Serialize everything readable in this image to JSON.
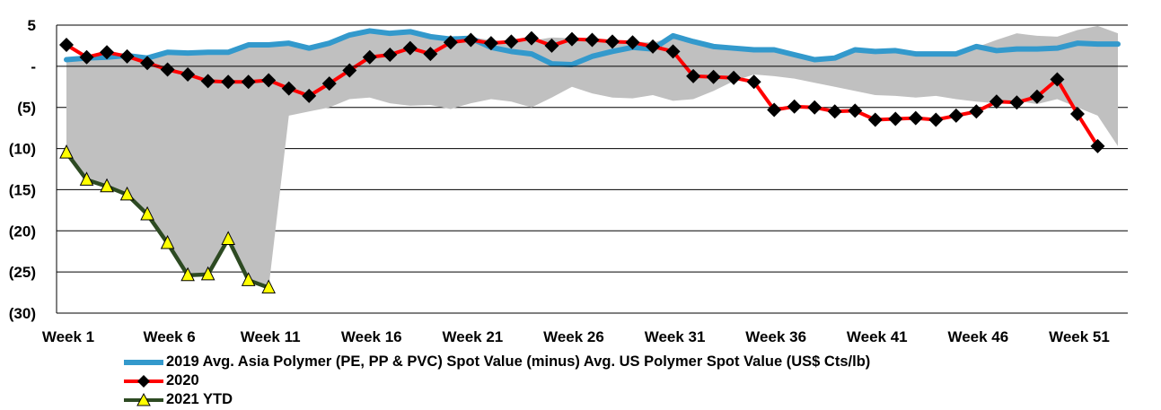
{
  "chart_data": {
    "type": "line",
    "title": "",
    "xlabel": "",
    "ylabel": "",
    "ylim": [
      -30,
      5
    ],
    "y_ticks": [
      5,
      0,
      -5,
      -10,
      -15,
      -20,
      -25,
      -30
    ],
    "y_tick_labels": [
      "5",
      "-",
      "(5)",
      "(10)",
      "(15)",
      "(20)",
      "(25)",
      "(30)"
    ],
    "x_tick_labels": [
      "Week 1",
      "Week 6",
      "Week 11",
      "Week 16",
      "Week 21",
      "Week 26",
      "Week 31",
      "Week 36",
      "Week 41",
      "Week 46",
      "Week 51"
    ],
    "x_tick_weeks": [
      1,
      6,
      11,
      16,
      21,
      26,
      31,
      36,
      41,
      46,
      51
    ],
    "grid": true,
    "legend_position": "bottom",
    "band": {
      "name": "range",
      "color": "#c0c0c0",
      "upper": [
        1.1,
        1.2,
        1.0,
        1.3,
        1.3,
        1.6,
        1.5,
        1.6,
        1.6,
        2.3,
        2.3,
        2.6,
        2.2,
        2.8,
        3.7,
        4.3,
        4.0,
        4.2,
        3.4,
        3.3,
        3.5,
        3.2,
        2.9,
        3.1,
        3.5,
        3.4,
        3.4,
        3.1,
        3.0,
        2.9,
        3.5,
        2.8,
        2.2,
        2.0,
        1.9,
        1.9,
        1.5,
        0.8,
        1.0,
        1.9,
        1.7,
        1.9,
        1.5,
        1.5,
        1.5,
        2.3,
        3.2,
        4.0,
        3.7,
        3.6,
        4.4,
        4.9,
        4.0
      ],
      "lower": [
        -10.5,
        -13.8,
        -14.6,
        -15.6,
        -18.0,
        -21.5,
        -25.4,
        -25.3,
        -21.0,
        -26.0,
        -26.9,
        -6.0,
        -5.5,
        -5.0,
        -4.0,
        -3.8,
        -4.5,
        -4.8,
        -4.7,
        -5.2,
        -4.5,
        -4.0,
        -4.3,
        -5.0,
        -3.8,
        -2.5,
        -3.3,
        -3.8,
        -3.9,
        -3.5,
        -4.2,
        -4.0,
        -3.0,
        -1.8,
        -1.0,
        -1.2,
        -1.5,
        -2.0,
        -2.5,
        -3.0,
        -3.5,
        -3.6,
        -3.8,
        -3.6,
        -4.0,
        -4.3,
        -4.5,
        -4.2,
        -4.6,
        -4.0,
        -5.0,
        -6.0,
        -9.7
      ]
    },
    "series": [
      {
        "name": "2019 Avg. Asia Polymer (PE, PP & PVC) Spot Value (minus) Avg. US Polymer Spot Value (US$ Cts/lb)",
        "color": "#3399cc",
        "marker": "none",
        "values": [
          0.8,
          1.0,
          1.1,
          1.3,
          1.0,
          1.7,
          1.6,
          1.7,
          1.7,
          2.6,
          2.6,
          2.8,
          2.2,
          2.8,
          3.8,
          4.3,
          4.0,
          4.2,
          3.6,
          3.3,
          3.4,
          2.3,
          1.8,
          1.5,
          0.3,
          0.2,
          1.2,
          1.8,
          2.3,
          2.1,
          3.7,
          3.0,
          2.4,
          2.2,
          2.0,
          2.0,
          1.4,
          0.8,
          1.0,
          2.0,
          1.8,
          1.9,
          1.5,
          1.5,
          1.5,
          2.4,
          1.9,
          2.1,
          2.1,
          2.2,
          2.8,
          2.7,
          2.7
        ]
      },
      {
        "name": "2020",
        "color": "#ff0000",
        "marker": "diamond",
        "values": [
          2.6,
          1.1,
          1.7,
          1.2,
          0.4,
          -0.4,
          -1.0,
          -1.8,
          -1.9,
          -1.9,
          -1.7,
          -2.7,
          -3.6,
          -2.1,
          -0.5,
          1.1,
          1.4,
          2.2,
          1.5,
          2.9,
          3.2,
          2.8,
          3.0,
          3.4,
          2.5,
          3.3,
          3.2,
          3.0,
          2.9,
          2.4,
          1.8,
          -1.2,
          -1.3,
          -1.4,
          -1.9,
          -5.3,
          -4.9,
          -5.0,
          -5.5,
          -5.4,
          -6.5,
          -6.4,
          -6.3,
          -6.5,
          -6.0,
          -5.5,
          -4.3,
          -4.4,
          -3.7,
          -1.6,
          -5.8,
          -9.7
        ]
      },
      {
        "name": "2021 YTD",
        "color": "#2d4a22",
        "marker": "triangle",
        "marker_color": "#ffff00",
        "values": [
          -10.5,
          -13.8,
          -14.6,
          -15.6,
          -18.0,
          -21.5,
          -25.4,
          -25.3,
          -21.0,
          -26.0,
          -26.9
        ]
      }
    ]
  }
}
